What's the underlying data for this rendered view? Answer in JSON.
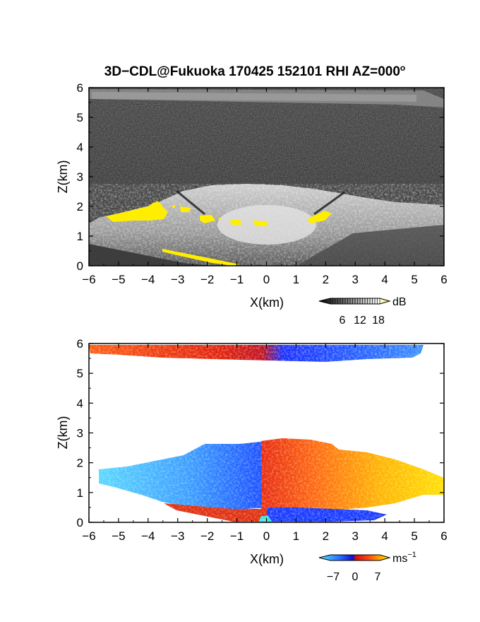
{
  "figure": {
    "title": "3D−CDL@Fukuoka 170425 152101 RHI AZ=000",
    "title_superscript": "o"
  },
  "colors": {
    "yellow": "#ffee00",
    "grey_bg": "#2e2e2e",
    "white_bg": "#ffffff"
  },
  "chart_data": [
    {
      "type": "heatmap",
      "variable": "backscatter",
      "title": "3D−CDL@Fukuoka 170425 152101 RHI AZ=000o",
      "xlabel": "X(km)",
      "ylabel": "Z(km)",
      "xlim": [
        -6,
        6
      ],
      "ylim": [
        0,
        6
      ],
      "x_ticks": [
        "−6",
        "−5",
        "−4",
        "−3",
        "−2",
        "−1",
        "0",
        "1",
        "2",
        "3",
        "4",
        "5",
        "6"
      ],
      "y_ticks": [
        "0",
        "1",
        "2",
        "3",
        "4",
        "5",
        "6"
      ],
      "colorbar": {
        "unit": "dB",
        "tick_labels": [
          "6",
          "12",
          "18"
        ],
        "colormap": "greyscale-to-yellow"
      },
      "features": [
        {
          "name": "dense boundary layer echo",
          "x_range": [
            -6,
            6
          ],
          "z_range": [
            0.1,
            1.7
          ],
          "level_db": 12
        },
        {
          "name": "cloud base (yellow)",
          "x_range": [
            -5.5,
            2.5
          ],
          "z_range": [
            1.5,
            2.1
          ],
          "level_db": 18
        },
        {
          "name": "upper echo layer",
          "x_range": [
            -6,
            5
          ],
          "z_range": [
            5.5,
            5.9
          ],
          "level_db": 9
        }
      ]
    },
    {
      "type": "heatmap",
      "variable": "radial_velocity",
      "xlabel": "X(km)",
      "ylabel": "Z(km)",
      "xlim": [
        -6,
        6
      ],
      "ylim": [
        0,
        6
      ],
      "x_ticks": [
        "−6",
        "−5",
        "−4",
        "−3",
        "−2",
        "−1",
        "0",
        "1",
        "2",
        "3",
        "4",
        "5",
        "6"
      ],
      "y_ticks": [
        "0",
        "1",
        "2",
        "3",
        "4",
        "5",
        "6"
      ],
      "colorbar": {
        "unit": "ms",
        "unit_superscript": "−1",
        "tick_labels": [
          "−7",
          "0",
          "7"
        ],
        "range": [
          -7,
          7
        ],
        "colormap": "cyan-blue-red-orange-yellow"
      },
      "features": [
        {
          "name": "left boundary layer",
          "x_range": [
            -5.6,
            0
          ],
          "z_range": [
            0.35,
            2.7
          ],
          "velocity": -6
        },
        {
          "name": "right boundary layer",
          "x_range": [
            0,
            6
          ],
          "z_range": [
            0.35,
            2.7
          ],
          "velocity": 5
        },
        {
          "name": "near-surface layer left",
          "x_range": [
            -3.5,
            0
          ],
          "z_range": [
            0,
            0.5
          ],
          "velocity": 0.5
        },
        {
          "name": "near-surface layer right",
          "x_range": [
            0,
            3.5
          ],
          "z_range": [
            0,
            0.5
          ],
          "velocity": -2
        },
        {
          "name": "upper layer left",
          "x_range": [
            -6,
            0.5
          ],
          "z_range": [
            5.5,
            6
          ],
          "velocity": 0.5
        },
        {
          "name": "upper layer right",
          "x_range": [
            0.5,
            5
          ],
          "z_range": [
            5.5,
            6
          ],
          "velocity": -2.5
        }
      ]
    }
  ]
}
